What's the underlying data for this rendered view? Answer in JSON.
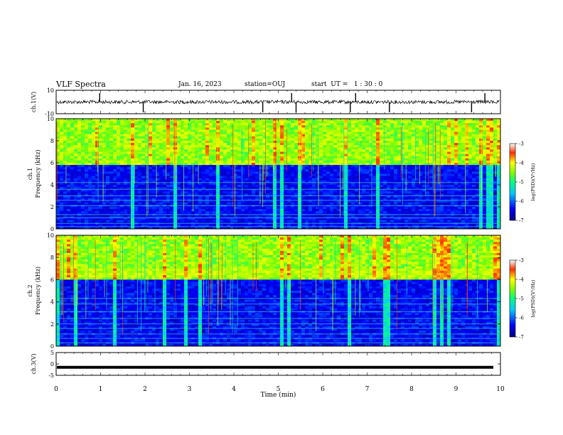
{
  "header": {
    "title": "VLF Spectra",
    "date": "Jan. 16, 2023",
    "station": "station=OUJ",
    "start": "start  UT =   1 : 30 : 0"
  },
  "chart_data": [
    {
      "type": "line",
      "ylabel": "ch.1(V)",
      "ylim": [
        -10,
        10
      ],
      "yticks": [
        "10",
        "-10"
      ],
      "series": [
        {
          "baseline": 0,
          "typical_noise": 1.5,
          "spikes": [
            0.98,
            1.96,
            4.65,
            5.3,
            5.4,
            6.62,
            6.74,
            7.5,
            9.35,
            9.65
          ]
        }
      ]
    },
    {
      "type": "heatmap",
      "ylabel": "ch.1",
      "ylabel2": "Frequency (kHz)",
      "ylim": [
        0,
        10
      ],
      "yticks": [
        "0",
        "2",
        "4",
        "6",
        "8",
        "10"
      ],
      "xlim": [
        0,
        10
      ],
      "colorbar": {
        "label": "log(PSD)(V²/Hz)",
        "range": [
          -7,
          -3
        ],
        "ticks": [
          "-3",
          "-4",
          "-5",
          "-6",
          "-7"
        ]
      },
      "band_edge_khz": 5.8,
      "bright_lines_khz": [
        0.2,
        0.5,
        1.0,
        1.3,
        2.1,
        2.6,
        3.0,
        3.6,
        4.2
      ]
    },
    {
      "type": "heatmap",
      "ylabel": "ch.2",
      "ylabel2": "Frequency (kHz)",
      "ylim": [
        0,
        10
      ],
      "yticks": [
        "0",
        "2",
        "4",
        "6",
        "8",
        "10"
      ],
      "xlim": [
        0,
        10
      ],
      "colorbar": {
        "label": "log(PSD)(V²/Hz)",
        "range": [
          -7,
          -3
        ],
        "ticks": [
          "-3",
          "-4",
          "-5",
          "-6",
          "-7"
        ]
      },
      "band_edge_khz": 6.0,
      "bright_band_khz": [
        6.2,
        7.0
      ],
      "bright_lines_khz": [
        0.3,
        0.7,
        1.1,
        1.6,
        2.0,
        2.5,
        3.1,
        3.8,
        4.3
      ]
    },
    {
      "type": "line",
      "ylabel": "ch.3(V)",
      "ylim": [
        -5,
        5
      ],
      "yticks": [
        "5",
        "0",
        "-5"
      ],
      "series": [
        {
          "value": -1.5
        }
      ]
    }
  ],
  "xaxis": {
    "label": "Time (min)",
    "ticks": [
      "0",
      "1",
      "2",
      "3",
      "4",
      "5",
      "6",
      "7",
      "8",
      "9",
      "10"
    ],
    "range": [
      0,
      10
    ]
  }
}
